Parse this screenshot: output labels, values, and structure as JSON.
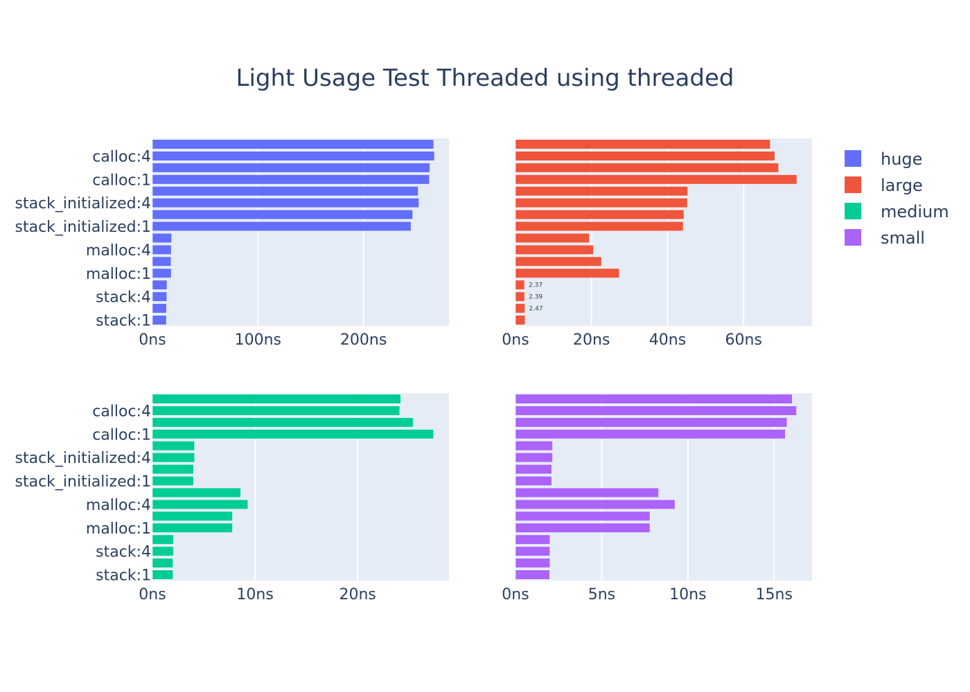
{
  "title": "Light Usage Test Threaded using threaded",
  "colors": {
    "huge": "#636efa",
    "large": "#ef553b",
    "medium": "#00cc96",
    "small": "#ab63fa",
    "plot_bg": "#e5ecf6",
    "grid": "#ffffff",
    "text": "#2a3f5f"
  },
  "legend": {
    "position": "right",
    "items": [
      {
        "name": "huge",
        "color": "#636efa"
      },
      {
        "name": "large",
        "color": "#ef553b"
      },
      {
        "name": "medium",
        "color": "#00cc96"
      },
      {
        "name": "small",
        "color": "#ab63fa"
      }
    ]
  },
  "chart_data": [
    {
      "type": "bar",
      "orientation": "horizontal",
      "series_name": "huge",
      "color": "#636efa",
      "y_tick_labels": [
        "calloc:4",
        "calloc:1",
        "stack_initialized:4",
        "stack_initialized:1",
        "malloc:4",
        "malloc:1",
        "stack:4",
        "stack:1"
      ],
      "x_tick_labels": [
        "0ns",
        "100ns",
        "200ns"
      ],
      "x_ticks": [
        0,
        100,
        200
      ],
      "xlim": [
        0,
        281
      ],
      "values": [
        266.5,
        267.2,
        262.9,
        262.4,
        251.8,
        252.5,
        246.6,
        245.0,
        18.2,
        17.8,
        17.6,
        17.8,
        13.8,
        13.6,
        13.3,
        13.2
      ],
      "bar_labels": [],
      "grid": true
    },
    {
      "type": "bar",
      "orientation": "horizontal",
      "series_name": "large",
      "color": "#ef553b",
      "y_tick_labels": [],
      "x_tick_labels": [
        "0ns",
        "20ns",
        "40ns",
        "60ns"
      ],
      "x_ticks": [
        0,
        20,
        40,
        60
      ],
      "xlim": [
        0,
        78
      ],
      "values": [
        67.0,
        68.2,
        69.2,
        74.0,
        45.3,
        45.2,
        44.3,
        44.1,
        19.4,
        20.5,
        22.6,
        27.3,
        2.37,
        2.39,
        2.47,
        2.5
      ],
      "bar_labels": [
        "",
        "",
        "",
        "",
        "",
        "",
        "",
        "",
        "",
        "",
        "",
        "",
        "2.37",
        "2.39",
        "2.47",
        ""
      ],
      "grid": true
    },
    {
      "type": "bar",
      "orientation": "horizontal",
      "series_name": "medium",
      "color": "#00cc96",
      "y_tick_labels": [
        "calloc:4",
        "calloc:1",
        "stack_initialized:4",
        "stack_initialized:1",
        "malloc:4",
        "malloc:1",
        "stack:4",
        "stack:1"
      ],
      "x_tick_labels": [
        "0ns",
        "10ns",
        "20ns"
      ],
      "x_ticks": [
        0,
        10,
        20
      ],
      "xlim": [
        0,
        28.9
      ],
      "values": [
        24.2,
        24.1,
        25.4,
        27.4,
        4.1,
        4.1,
        4.0,
        4.0,
        8.6,
        9.3,
        7.8,
        7.8,
        2.05,
        2.05,
        2.0,
        2.0
      ],
      "bar_labels": [],
      "grid": true
    },
    {
      "type": "bar",
      "orientation": "horizontal",
      "series_name": "small",
      "color": "#ab63fa",
      "y_tick_labels": [],
      "x_tick_labels": [
        "0ns",
        "5ns",
        "10ns",
        "15ns"
      ],
      "x_ticks": [
        0,
        5,
        10,
        15
      ],
      "xlim": [
        0,
        17.2
      ],
      "values": [
        16.05,
        16.3,
        15.75,
        15.65,
        2.15,
        2.15,
        2.1,
        2.1,
        8.3,
        9.25,
        7.8,
        7.8,
        2.0,
        2.0,
        2.0,
        1.98
      ],
      "bar_labels": [],
      "grid": true
    }
  ]
}
